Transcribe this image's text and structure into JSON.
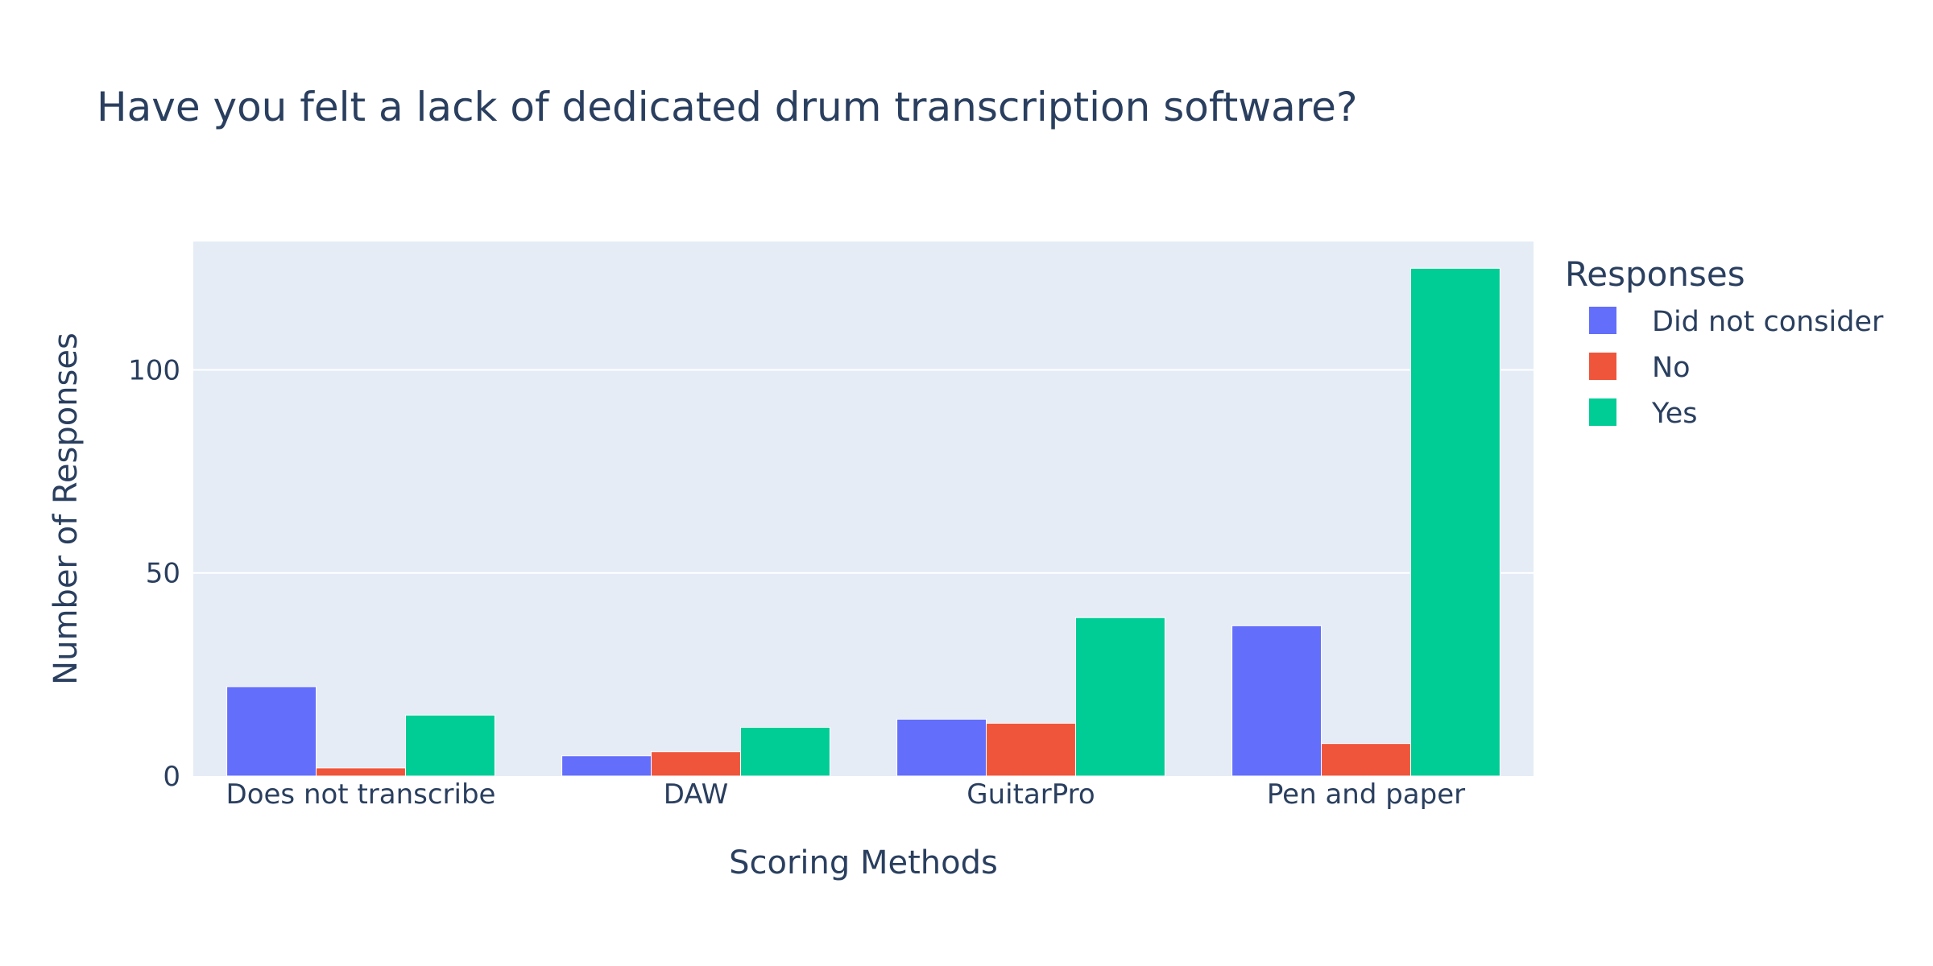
{
  "chart_data": {
    "type": "bar",
    "barmode": "group",
    "title": "Have you felt a lack of dedicated drum transcription software?",
    "xlabel": "Scoring Methods",
    "ylabel": "Number of Responses",
    "categories": [
      "Does not transcribe",
      "DAW",
      "GuitarPro",
      "Pen and paper"
    ],
    "series": [
      {
        "name": "Did not consider",
        "color": "#636efa",
        "values": [
          22,
          5,
          14,
          37
        ]
      },
      {
        "name": "No",
        "color": "#ef553b",
        "values": [
          2,
          6,
          13,
          8
        ]
      },
      {
        "name": "Yes",
        "color": "#00cc96",
        "values": [
          15,
          12,
          39,
          125
        ]
      }
    ],
    "ylim": [
      0,
      131.6
    ],
    "yticks": [
      0,
      50,
      100
    ],
    "grid": true,
    "plot_bgcolor": "#e5ecf6",
    "legend": {
      "title": "Responses",
      "position": "right"
    }
  }
}
